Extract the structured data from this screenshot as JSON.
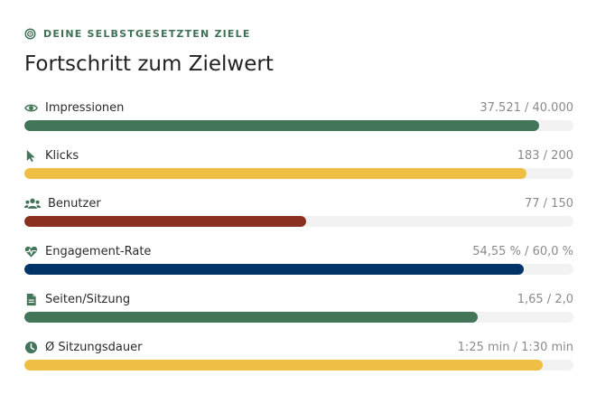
{
  "header": {
    "eyebrow": "DEINE SELBSTGESETZTEN ZIELE",
    "eyebrow_icon": "target-icon",
    "title": "Fortschritt zum Zielwert"
  },
  "colors": {
    "green": "#437559",
    "yellow": "#efbf45",
    "red": "#8b3020",
    "navy": "#02346a",
    "track": "#f2f2f2"
  },
  "goals": [
    {
      "label": "Impressionen",
      "value": "37.521 / 40.000",
      "progress": 0.938,
      "icon": "eye-icon",
      "color": "#437559"
    },
    {
      "label": "Klicks",
      "value": "183 / 200",
      "progress": 0.915,
      "icon": "cursor-icon",
      "color": "#efbf45"
    },
    {
      "label": "Benutzer",
      "value": "77 / 150",
      "progress": 0.513,
      "icon": "users-icon",
      "color": "#8b3020"
    },
    {
      "label": "Engagement-Rate",
      "value": "54,55 % / 60,0 %",
      "progress": 0.909,
      "icon": "heartbeat-icon",
      "color": "#02346a"
    },
    {
      "label": "Seiten/Sitzung",
      "value": "1,65 / 2,0",
      "progress": 0.825,
      "icon": "document-icon",
      "color": "#437559"
    },
    {
      "label": "Ø Sitzungsdauer",
      "value": "1:25 min / 1:30 min",
      "progress": 0.944,
      "icon": "clock-icon",
      "color": "#efbf45"
    }
  ]
}
